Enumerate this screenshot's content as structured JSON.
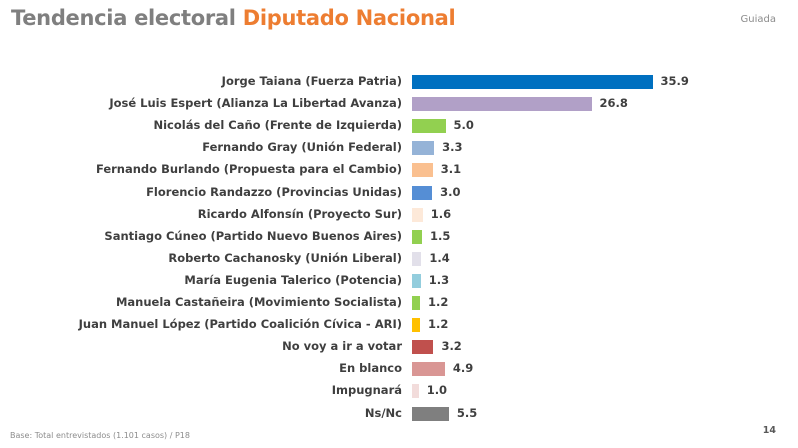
{
  "header": {
    "title_main": "Tendencia electoral",
    "title_accent": "Diputado Nacional",
    "tag": "Guiada"
  },
  "footer": {
    "note": "Base: Total entrevistados (1.101 casos) / P18",
    "page_number": "14"
  },
  "chart_data": {
    "type": "bar",
    "orientation": "horizontal",
    "title": "Tendencia electoral Diputado Nacional",
    "xlabel": "",
    "ylabel": "",
    "grid": false,
    "legend": "none",
    "categories": [
      "Jorge Taiana (Fuerza Patria)",
      "José Luis Espert (Alianza La Libertad Avanza)",
      "Nicolás del Caño (Frente de Izquierda)",
      "Fernando Gray (Unión Federal)",
      "Fernando Burlando (Propuesta para el Cambio)",
      "Florencio Randazzo (Provincias Unidas)",
      "Ricardo Alfonsín (Proyecto Sur)",
      "Santiago Cúneo (Partido Nuevo Buenos Aires)",
      "Roberto Cachanosky (Unión Liberal)",
      "María Eugenia Talerico (Potencia)",
      "Manuela Castañeira (Movimiento Socialista)",
      "Juan Manuel López (Partido Coalición Cívica - ARI)",
      "No voy a ir a votar",
      "En blanco",
      "Impugnará",
      "Ns/Nc"
    ],
    "values": [
      35.9,
      26.8,
      5.0,
      3.3,
      3.1,
      3.0,
      1.6,
      1.5,
      1.4,
      1.3,
      1.2,
      1.2,
      3.2,
      4.9,
      1.0,
      5.5
    ],
    "value_labels": [
      "35.9",
      "26.8",
      "5.0",
      "3.3",
      "3.1",
      "3.0",
      "1.6",
      "1.5",
      "1.4",
      "1.3",
      "1.2",
      "1.2",
      "3.2",
      "4.9",
      "1.0",
      "5.5"
    ],
    "colors": [
      "#0070c0",
      "#b1a0c7",
      "#92d050",
      "#95b3d7",
      "#fac090",
      "#558ed5",
      "#fde9d9",
      "#92d050",
      "#e2e0ea",
      "#93cddd",
      "#92d050",
      "#ffc000",
      "#c0504d",
      "#d99694",
      "#f2dcdb",
      "#7f7f7f"
    ],
    "xlim": [
      0,
      40
    ]
  }
}
